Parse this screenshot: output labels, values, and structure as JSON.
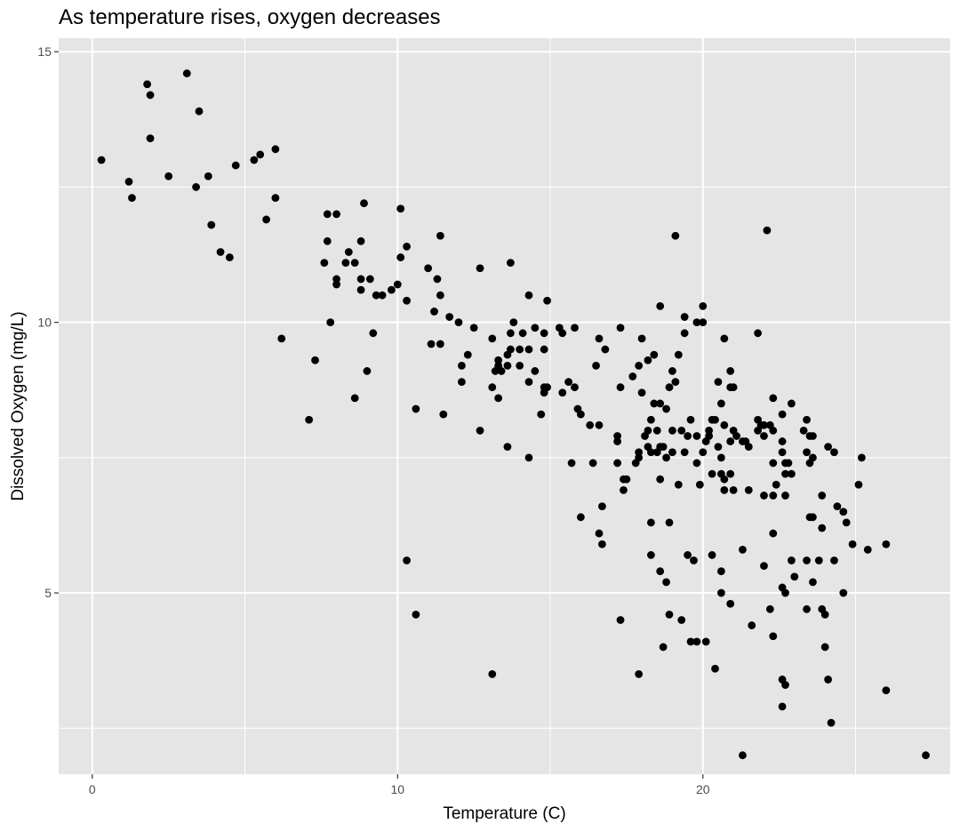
{
  "chart_data": {
    "type": "scatter",
    "title": "As temperature rises, oxygen decreases",
    "xlabel": "Temperature (C)",
    "ylabel": "Dissolved Oxygen (mg/L)",
    "xlim": [
      -1.1,
      28.1
    ],
    "ylim": [
      1.65,
      15.25
    ],
    "x_ticks": [
      0,
      10,
      20
    ],
    "x_minor": [
      5,
      15,
      25
    ],
    "y_ticks": [
      5,
      10,
      15
    ],
    "y_minor": [
      2.5,
      7.5,
      12.5
    ],
    "grid": true,
    "legend": "none",
    "colors": {
      "panel": "#e5e5e5",
      "grid": "#ffffff",
      "point": "#000000"
    },
    "points": [
      [
        0.3,
        13.0
      ],
      [
        1.2,
        12.6
      ],
      [
        1.3,
        12.3
      ],
      [
        1.8,
        14.4
      ],
      [
        1.9,
        14.2
      ],
      [
        1.9,
        13.4
      ],
      [
        2.5,
        12.7
      ],
      [
        3.1,
        14.6
      ],
      [
        3.4,
        12.5
      ],
      [
        3.5,
        13.9
      ],
      [
        3.8,
        12.7
      ],
      [
        3.9,
        11.8
      ],
      [
        4.2,
        11.3
      ],
      [
        4.5,
        11.2
      ],
      [
        4.7,
        12.9
      ],
      [
        5.3,
        13.0
      ],
      [
        5.5,
        13.1
      ],
      [
        5.7,
        11.9
      ],
      [
        6.0,
        13.2
      ],
      [
        6.0,
        12.3
      ],
      [
        6.2,
        9.7
      ],
      [
        7.1,
        8.2
      ],
      [
        7.3,
        9.3
      ],
      [
        7.6,
        11.1
      ],
      [
        7.7,
        11.5
      ],
      [
        7.7,
        12.0
      ],
      [
        7.8,
        10.0
      ],
      [
        8.0,
        12.0
      ],
      [
        8.0,
        10.8
      ],
      [
        8.0,
        10.7
      ],
      [
        8.3,
        11.1
      ],
      [
        8.4,
        11.3
      ],
      [
        8.6,
        11.1
      ],
      [
        8.6,
        8.6
      ],
      [
        8.8,
        11.5
      ],
      [
        8.8,
        10.8
      ],
      [
        8.8,
        10.6
      ],
      [
        8.9,
        12.2
      ],
      [
        9.0,
        9.1
      ],
      [
        9.1,
        10.8
      ],
      [
        9.2,
        9.8
      ],
      [
        9.3,
        10.5
      ],
      [
        9.5,
        10.5
      ],
      [
        9.8,
        10.6
      ],
      [
        10.0,
        10.7
      ],
      [
        10.1,
        12.1
      ],
      [
        10.1,
        11.2
      ],
      [
        10.3,
        11.4
      ],
      [
        10.3,
        10.4
      ],
      [
        10.3,
        5.6
      ],
      [
        10.6,
        8.4
      ],
      [
        10.6,
        4.6
      ],
      [
        11.0,
        11.0
      ],
      [
        11.1,
        9.6
      ],
      [
        11.2,
        10.2
      ],
      [
        11.3,
        10.8
      ],
      [
        11.4,
        11.6
      ],
      [
        11.4,
        10.5
      ],
      [
        11.4,
        9.6
      ],
      [
        11.5,
        8.3
      ],
      [
        11.7,
        10.1
      ],
      [
        12.0,
        10.0
      ],
      [
        12.1,
        9.2
      ],
      [
        12.1,
        8.9
      ],
      [
        12.3,
        9.4
      ],
      [
        12.5,
        9.9
      ],
      [
        12.7,
        11.0
      ],
      [
        12.7,
        8.0
      ],
      [
        13.1,
        9.7
      ],
      [
        13.1,
        8.8
      ],
      [
        13.1,
        3.5
      ],
      [
        13.2,
        9.1
      ],
      [
        13.3,
        9.3
      ],
      [
        13.3,
        9.2
      ],
      [
        13.3,
        8.6
      ],
      [
        13.4,
        9.1
      ],
      [
        13.6,
        9.4
      ],
      [
        13.6,
        9.2
      ],
      [
        13.6,
        7.7
      ],
      [
        13.7,
        11.1
      ],
      [
        13.7,
        9.5
      ],
      [
        13.7,
        9.8
      ],
      [
        13.8,
        10.0
      ],
      [
        14.0,
        9.5
      ],
      [
        14.0,
        9.2
      ],
      [
        14.1,
        9.8
      ],
      [
        14.3,
        10.5
      ],
      [
        14.3,
        9.5
      ],
      [
        14.3,
        8.9
      ],
      [
        14.3,
        7.5
      ],
      [
        14.5,
        9.9
      ],
      [
        14.5,
        9.1
      ],
      [
        14.7,
        8.3
      ],
      [
        14.8,
        9.8
      ],
      [
        14.8,
        9.5
      ],
      [
        14.8,
        8.8
      ],
      [
        14.8,
        8.7
      ],
      [
        14.9,
        10.4
      ],
      [
        14.9,
        8.8
      ],
      [
        15.3,
        9.9
      ],
      [
        15.4,
        9.8
      ],
      [
        15.4,
        8.7
      ],
      [
        15.6,
        8.9
      ],
      [
        15.7,
        7.4
      ],
      [
        15.8,
        9.9
      ],
      [
        15.8,
        8.8
      ],
      [
        15.9,
        8.4
      ],
      [
        16.0,
        8.3
      ],
      [
        16.0,
        6.4
      ],
      [
        16.3,
        8.1
      ],
      [
        16.4,
        7.4
      ],
      [
        16.5,
        9.2
      ],
      [
        16.6,
        9.7
      ],
      [
        16.6,
        8.1
      ],
      [
        16.6,
        6.1
      ],
      [
        16.7,
        5.9
      ],
      [
        16.7,
        6.6
      ],
      [
        16.8,
        9.5
      ],
      [
        17.2,
        7.9
      ],
      [
        17.2,
        7.8
      ],
      [
        17.2,
        7.4
      ],
      [
        17.3,
        9.9
      ],
      [
        17.3,
        8.8
      ],
      [
        17.3,
        4.5
      ],
      [
        17.4,
        7.1
      ],
      [
        17.4,
        6.9
      ],
      [
        17.5,
        7.1
      ],
      [
        17.7,
        9.0
      ],
      [
        17.8,
        7.4
      ],
      [
        17.9,
        9.2
      ],
      [
        17.9,
        7.6
      ],
      [
        17.9,
        7.5
      ],
      [
        17.9,
        3.5
      ],
      [
        18.0,
        9.7
      ],
      [
        18.0,
        8.7
      ],
      [
        18.1,
        7.9
      ],
      [
        18.2,
        9.3
      ],
      [
        18.2,
        8.0
      ],
      [
        18.2,
        7.7
      ],
      [
        18.3,
        8.2
      ],
      [
        18.3,
        7.6
      ],
      [
        18.3,
        6.3
      ],
      [
        18.3,
        5.7
      ],
      [
        18.4,
        9.4
      ],
      [
        18.4,
        8.5
      ],
      [
        18.5,
        8.0
      ],
      [
        18.5,
        7.6
      ],
      [
        18.6,
        10.3
      ],
      [
        18.6,
        8.5
      ],
      [
        18.6,
        7.7
      ],
      [
        18.6,
        7.1
      ],
      [
        18.6,
        5.4
      ],
      [
        18.7,
        7.7
      ],
      [
        18.7,
        4.0
      ],
      [
        18.8,
        8.4
      ],
      [
        18.8,
        7.5
      ],
      [
        18.8,
        5.2
      ],
      [
        18.9,
        8.8
      ],
      [
        18.9,
        6.3
      ],
      [
        18.9,
        4.6
      ],
      [
        19.0,
        9.1
      ],
      [
        19.0,
        8.0
      ],
      [
        19.0,
        7.6
      ],
      [
        19.1,
        11.6
      ],
      [
        19.1,
        8.9
      ],
      [
        19.2,
        9.4
      ],
      [
        19.2,
        7.0
      ],
      [
        19.3,
        8.0
      ],
      [
        19.3,
        4.5
      ],
      [
        19.4,
        9.8
      ],
      [
        19.4,
        10.1
      ],
      [
        19.4,
        7.6
      ],
      [
        19.5,
        7.9
      ],
      [
        19.5,
        5.7
      ],
      [
        19.6,
        8.2
      ],
      [
        19.6,
        4.1
      ],
      [
        19.7,
        5.6
      ],
      [
        19.8,
        7.9
      ],
      [
        19.8,
        7.4
      ],
      [
        19.8,
        10.0
      ],
      [
        19.8,
        4.1
      ],
      [
        19.9,
        7.0
      ],
      [
        20.0,
        10.3
      ],
      [
        20.0,
        10.0
      ],
      [
        20.0,
        7.6
      ],
      [
        20.1,
        7.8
      ],
      [
        20.1,
        4.1
      ],
      [
        20.2,
        8.0
      ],
      [
        20.2,
        7.9
      ],
      [
        20.3,
        7.2
      ],
      [
        20.3,
        8.2
      ],
      [
        20.3,
        5.7
      ],
      [
        20.4,
        8.2
      ],
      [
        20.4,
        3.6
      ],
      [
        20.5,
        7.7
      ],
      [
        20.5,
        8.9
      ],
      [
        20.6,
        8.5
      ],
      [
        20.6,
        7.5
      ],
      [
        20.6,
        5.4
      ],
      [
        20.6,
        5.0
      ],
      [
        20.6,
        7.2
      ],
      [
        20.7,
        9.7
      ],
      [
        20.7,
        8.1
      ],
      [
        20.7,
        7.1
      ],
      [
        20.7,
        6.9
      ],
      [
        20.9,
        9.1
      ],
      [
        20.9,
        8.8
      ],
      [
        20.9,
        7.8
      ],
      [
        20.9,
        7.2
      ],
      [
        20.9,
        4.8
      ],
      [
        21.0,
        8.0
      ],
      [
        21.0,
        8.8
      ],
      [
        21.0,
        6.9
      ],
      [
        21.1,
        7.9
      ],
      [
        21.3,
        7.8
      ],
      [
        21.3,
        5.8
      ],
      [
        21.3,
        2.0
      ],
      [
        21.4,
        7.8
      ],
      [
        21.5,
        7.7
      ],
      [
        21.5,
        6.9
      ],
      [
        21.6,
        4.4
      ],
      [
        21.8,
        8.2
      ],
      [
        21.8,
        8.0
      ],
      [
        21.8,
        9.8
      ],
      [
        21.9,
        8.1
      ],
      [
        22.0,
        8.1
      ],
      [
        22.0,
        7.9
      ],
      [
        22.0,
        6.8
      ],
      [
        22.0,
        5.5
      ],
      [
        22.1,
        11.7
      ],
      [
        22.2,
        8.1
      ],
      [
        22.2,
        4.7
      ],
      [
        22.3,
        8.0
      ],
      [
        22.3,
        8.6
      ],
      [
        22.3,
        7.4
      ],
      [
        22.3,
        6.8
      ],
      [
        22.3,
        6.1
      ],
      [
        22.3,
        4.2
      ],
      [
        22.4,
        7.0
      ],
      [
        22.6,
        8.3
      ],
      [
        22.6,
        7.8
      ],
      [
        22.6,
        7.6
      ],
      [
        22.6,
        5.1
      ],
      [
        22.6,
        3.4
      ],
      [
        22.6,
        2.9
      ],
      [
        22.7,
        7.4
      ],
      [
        22.7,
        7.2
      ],
      [
        22.7,
        6.8
      ],
      [
        22.7,
        5.0
      ],
      [
        22.7,
        3.3
      ],
      [
        22.8,
        7.4
      ],
      [
        22.9,
        8.5
      ],
      [
        22.9,
        7.2
      ],
      [
        22.9,
        5.6
      ],
      [
        23.0,
        5.3
      ],
      [
        23.3,
        8.0
      ],
      [
        23.4,
        8.2
      ],
      [
        23.4,
        7.6
      ],
      [
        23.4,
        5.6
      ],
      [
        23.4,
        4.7
      ],
      [
        23.5,
        7.9
      ],
      [
        23.5,
        7.4
      ],
      [
        23.5,
        6.4
      ],
      [
        23.6,
        7.5
      ],
      [
        23.6,
        6.4
      ],
      [
        23.6,
        5.2
      ],
      [
        23.6,
        7.9
      ],
      [
        23.8,
        5.6
      ],
      [
        23.9,
        6.8
      ],
      [
        23.9,
        6.2
      ],
      [
        23.9,
        4.7
      ],
      [
        24.0,
        4.6
      ],
      [
        24.0,
        4.0
      ],
      [
        24.1,
        7.7
      ],
      [
        24.1,
        3.4
      ],
      [
        24.2,
        2.6
      ],
      [
        24.3,
        7.6
      ],
      [
        24.3,
        5.6
      ],
      [
        24.4,
        6.6
      ],
      [
        24.6,
        6.5
      ],
      [
        24.6,
        5.0
      ],
      [
        24.7,
        6.3
      ],
      [
        24.9,
        5.9
      ],
      [
        25.1,
        7.0
      ],
      [
        25.2,
        7.5
      ],
      [
        25.4,
        5.8
      ],
      [
        26.0,
        5.9
      ],
      [
        26.0,
        3.2
      ],
      [
        27.3,
        2.0
      ]
    ]
  }
}
